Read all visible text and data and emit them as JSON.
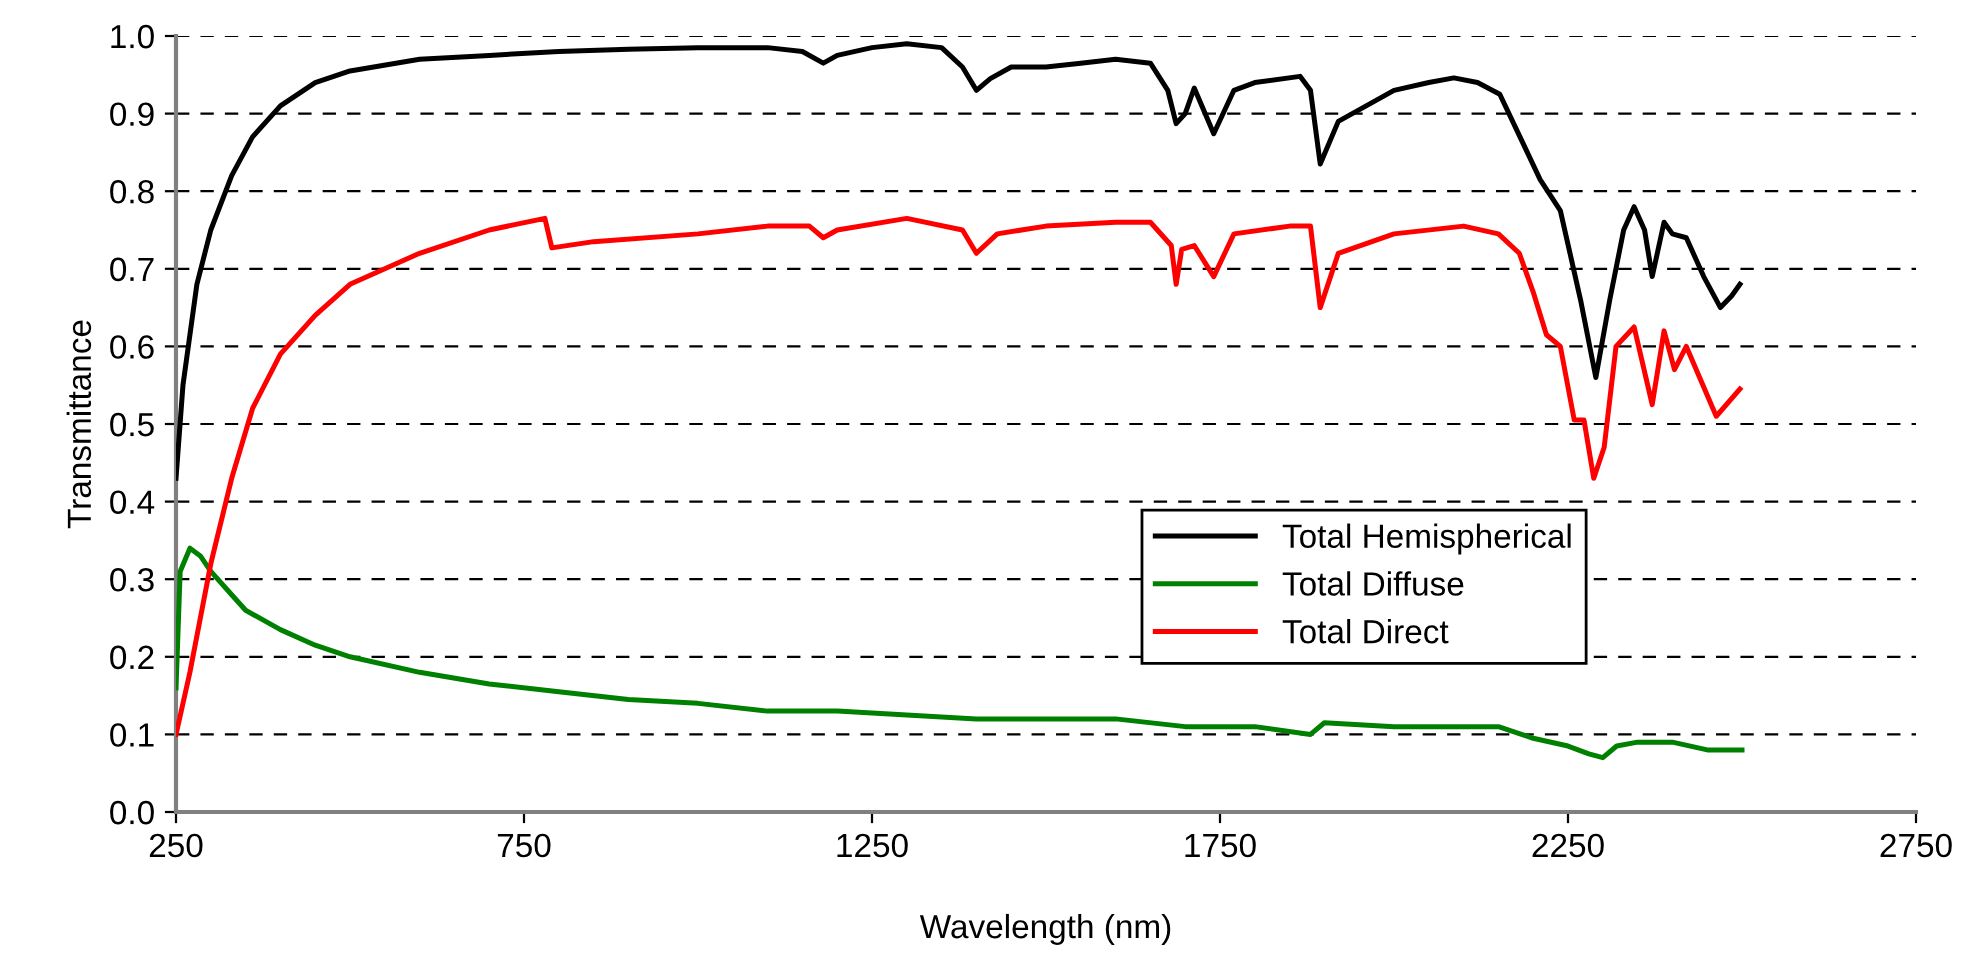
{
  "chart_data": {
    "type": "line",
    "xlabel": "Wavelength (nm)",
    "ylabel": "Transmittance",
    "xlim": [
      250,
      2750
    ],
    "xticks": [
      250,
      750,
      1250,
      1750,
      2250,
      2750
    ],
    "ylim": [
      0,
      1
    ],
    "yticks": [
      {
        "value": 0,
        "label": "0.0"
      },
      0.1,
      0.2,
      0.3,
      0.4,
      0.5,
      0.6,
      0.7,
      0.8,
      0.9,
      {
        "value": 1,
        "label": "1.0"
      }
    ],
    "grid": "y",
    "legend": "lower right",
    "marker": "none",
    "line_style": "solid",
    "series": [
      {
        "name": "Total Hemispherical",
        "color": "#000000",
        "x": [
          250,
          260,
          280,
          300,
          330,
          360,
          400,
          450,
          500,
          600,
          700,
          800,
          900,
          1000,
          1100,
          1150,
          1180,
          1200,
          1250,
          1300,
          1350,
          1380,
          1400,
          1420,
          1450,
          1500,
          1550,
          1600,
          1650,
          1675,
          1687,
          1700,
          1713,
          1741,
          1770,
          1800,
          1865,
          1880,
          1894,
          1920,
          1960,
          2000,
          2050,
          2086,
          2120,
          2152,
          2181,
          2210,
          2239,
          2268,
          2290,
          2310,
          2330,
          2345,
          2360,
          2371,
          2388,
          2400,
          2420,
          2445,
          2469,
          2485,
          2497
        ],
        "values": [
          0.43,
          0.55,
          0.68,
          0.75,
          0.82,
          0.87,
          0.91,
          0.94,
          0.955,
          0.97,
          0.975,
          0.98,
          0.983,
          0.985,
          0.985,
          0.98,
          0.965,
          0.975,
          0.985,
          0.99,
          0.985,
          0.96,
          0.93,
          0.945,
          0.96,
          0.96,
          0.965,
          0.97,
          0.965,
          0.93,
          0.887,
          0.9,
          0.933,
          0.874,
          0.93,
          0.94,
          0.948,
          0.93,
          0.835,
          0.89,
          0.91,
          0.93,
          0.94,
          0.946,
          0.94,
          0.925,
          0.87,
          0.815,
          0.775,
          0.66,
          0.56,
          0.66,
          0.75,
          0.78,
          0.75,
          0.69,
          0.76,
          0.745,
          0.74,
          0.69,
          0.65,
          0.665,
          0.68
        ]
      },
      {
        "name": "Total Diffuse",
        "color": "#008000",
        "x": [
          250,
          256,
          270,
          285,
          300,
          330,
          350,
          400,
          450,
          500,
          600,
          700,
          800,
          900,
          1000,
          1100,
          1200,
          1300,
          1400,
          1500,
          1600,
          1700,
          1800,
          1880,
          1900,
          2000,
          2100,
          2150,
          2200,
          2250,
          2280,
          2300,
          2320,
          2350,
          2400,
          2450,
          2500
        ],
        "values": [
          0.16,
          0.31,
          0.34,
          0.33,
          0.31,
          0.28,
          0.26,
          0.235,
          0.215,
          0.2,
          0.18,
          0.165,
          0.155,
          0.145,
          0.14,
          0.13,
          0.13,
          0.125,
          0.12,
          0.12,
          0.12,
          0.11,
          0.11,
          0.1,
          0.115,
          0.11,
          0.11,
          0.11,
          0.095,
          0.085,
          0.075,
          0.07,
          0.085,
          0.09,
          0.09,
          0.08,
          0.08
        ]
      },
      {
        "name": "Total Direct",
        "color": "#ff0000",
        "x": [
          250,
          270,
          300,
          330,
          360,
          400,
          450,
          500,
          550,
          600,
          700,
          780,
          790,
          850,
          1000,
          1100,
          1160,
          1180,
          1200,
          1300,
          1380,
          1400,
          1430,
          1500,
          1600,
          1650,
          1680,
          1687,
          1695,
          1713,
          1741,
          1770,
          1850,
          1880,
          1894,
          1920,
          2000,
          2100,
          2150,
          2180,
          2200,
          2219,
          2239,
          2259,
          2273,
          2287,
          2302,
          2319,
          2345,
          2371,
          2388,
          2403,
          2420,
          2463,
          2497
        ],
        "values": [
          0.1,
          0.18,
          0.32,
          0.43,
          0.52,
          0.59,
          0.64,
          0.68,
          0.7,
          0.72,
          0.75,
          0.765,
          0.727,
          0.735,
          0.745,
          0.755,
          0.755,
          0.74,
          0.75,
          0.765,
          0.75,
          0.72,
          0.745,
          0.755,
          0.76,
          0.76,
          0.73,
          0.68,
          0.725,
          0.73,
          0.69,
          0.745,
          0.755,
          0.755,
          0.65,
          0.72,
          0.745,
          0.755,
          0.745,
          0.72,
          0.67,
          0.615,
          0.6,
          0.505,
          0.505,
          0.43,
          0.47,
          0.6,
          0.625,
          0.525,
          0.62,
          0.57,
          0.6,
          0.51,
          0.545
        ]
      }
    ]
  }
}
